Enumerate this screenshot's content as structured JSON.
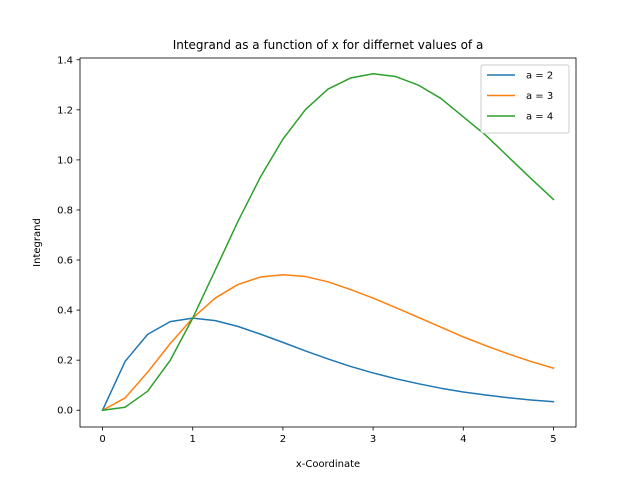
{
  "chart_data": {
    "type": "line",
    "title": "Integrand as a function of x for differnet values of a",
    "xlabel": "x-Coordinate",
    "ylabel": "Integrand",
    "xlim": [
      -0.25,
      5.25
    ],
    "ylim": [
      -0.067,
      1.407
    ],
    "x_ticks": [
      0,
      1,
      2,
      3,
      4,
      5
    ],
    "x_tick_labels": [
      "0",
      "1",
      "2",
      "3",
      "4",
      "5"
    ],
    "y_ticks": [
      0.0,
      0.2,
      0.4,
      0.6,
      0.8,
      1.0,
      1.2,
      1.4
    ],
    "y_tick_labels": [
      "0.0",
      "0.2",
      "0.4",
      "0.6",
      "0.8",
      "1.0",
      "1.2",
      "1.4"
    ],
    "grid": false,
    "legend_position": "top-right",
    "x": [
      0,
      0.25,
      0.5,
      0.75,
      1,
      1.25,
      1.5,
      1.75,
      2,
      2.25,
      2.5,
      2.75,
      3,
      3.25,
      3.5,
      3.75,
      4,
      4.25,
      4.5,
      4.75,
      5
    ],
    "series": [
      {
        "name": "a = 2",
        "color": "#1f77b4",
        "values": [
          0.0,
          0.195,
          0.303,
          0.354,
          0.368,
          0.358,
          0.335,
          0.304,
          0.271,
          0.237,
          0.205,
          0.175,
          0.149,
          0.126,
          0.106,
          0.088,
          0.073,
          0.061,
          0.05,
          0.041,
          0.034
        ]
      },
      {
        "name": "a = 3",
        "color": "#ff7f0e",
        "values": [
          0.0,
          0.049,
          0.152,
          0.266,
          0.368,
          0.448,
          0.502,
          0.532,
          0.541,
          0.534,
          0.513,
          0.482,
          0.448,
          0.41,
          0.371,
          0.332,
          0.293,
          0.258,
          0.225,
          0.195,
          0.168
        ]
      },
      {
        "name": "a = 4",
        "color": "#2ca02c",
        "values": [
          0.0,
          0.012,
          0.076,
          0.199,
          0.368,
          0.56,
          0.753,
          0.931,
          1.083,
          1.201,
          1.283,
          1.327,
          1.344,
          1.333,
          1.299,
          1.246,
          1.172,
          1.098,
          1.012,
          0.926,
          0.842
        ]
      }
    ]
  }
}
